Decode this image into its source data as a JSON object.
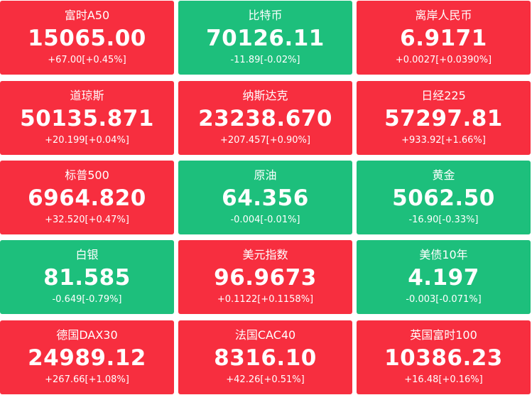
{
  "tiles": [
    {
      "name": "富时A50",
      "price": "15065.00",
      "change": "+67.00[+0.45%]",
      "direction": "up"
    },
    {
      "name": "比特币",
      "price": "70126.11",
      "change": "-11.89[-0.02%]",
      "direction": "down"
    },
    {
      "name": "离岸人民币",
      "price": "6.9171",
      "change": "+0.0027[+0.0390%]",
      "direction": "up"
    },
    {
      "name": "道琼斯",
      "price": "50135.871",
      "change": "+20.199[+0.04%]",
      "direction": "up"
    },
    {
      "name": "纳斯达克",
      "price": "23238.670",
      "change": "+207.457[+0.90%]",
      "direction": "up"
    },
    {
      "name": "日经225",
      "price": "57297.81",
      "change": "+933.92[+1.66%]",
      "direction": "up"
    },
    {
      "name": "标普500",
      "price": "6964.820",
      "change": "+32.520[+0.47%]",
      "direction": "up"
    },
    {
      "name": "原油",
      "price": "64.356",
      "change": "-0.004[-0.01%]",
      "direction": "down"
    },
    {
      "name": "黄金",
      "price": "5062.50",
      "change": "-16.90[-0.33%]",
      "direction": "down"
    },
    {
      "name": "白银",
      "price": "81.585",
      "change": "-0.649[-0.79%]",
      "direction": "down"
    },
    {
      "name": "美元指数",
      "price": "96.9673",
      "change": "+0.1122[+0.1158%]",
      "direction": "up"
    },
    {
      "name": "美债10年",
      "price": "4.197",
      "change": "-0.003[-0.071%]",
      "direction": "down"
    },
    {
      "name": "德国DAX30",
      "price": "24989.12",
      "change": "+267.66[+1.08%]",
      "direction": "up"
    },
    {
      "name": "法国CAC40",
      "price": "8316.10",
      "change": "+42.26[+0.51%]",
      "direction": "up"
    },
    {
      "name": "英国富时100",
      "price": "10386.23",
      "change": "+16.48[+0.16%]",
      "direction": "up"
    }
  ],
  "colors": {
    "up": "#f72e3f",
    "down": "#1dbf7c",
    "text": "#ffffff"
  }
}
